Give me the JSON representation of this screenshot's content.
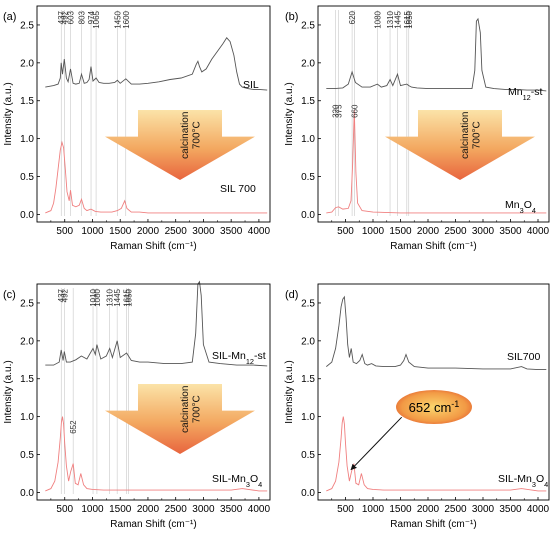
{
  "chart_data": [
    {
      "panel": "(a)",
      "type": "line",
      "xlabel": "Raman Shift (cm⁻¹)",
      "ylabel": "Intensity (a.u.)",
      "xlim": [
        0,
        4200
      ],
      "ylim": [
        -0.1,
        2.75
      ],
      "xticks": [
        500,
        1000,
        1500,
        2000,
        2500,
        3000,
        3500,
        4000
      ],
      "yticks": [
        0.0,
        0.5,
        1.0,
        1.5,
        2.0,
        2.5
      ],
      "peak_lines": [
        437,
        492,
        603,
        803,
        974,
        1065,
        1450,
        1600
      ],
      "peak_labels": [
        "437",
        "492",
        "603",
        "803",
        "974",
        "1065",
        "1450",
        "1600"
      ],
      "arrow_text": "calcination\n700°C",
      "series": [
        {
          "name": "SIL",
          "color": "#555555",
          "x": [
            150,
            300,
            380,
            420,
            437,
            460,
            492,
            530,
            560,
            603,
            650,
            700,
            760,
            803,
            850,
            900,
            940,
            974,
            1010,
            1065,
            1120,
            1200,
            1300,
            1400,
            1450,
            1500,
            1600,
            1700,
            1850,
            2000,
            2200,
            2400,
            2600,
            2800,
            2870,
            2900,
            2930,
            2970,
            3050,
            3150,
            3250,
            3350,
            3420,
            3480,
            3550,
            3600,
            3650,
            3700,
            3800,
            3900,
            4000,
            4150
          ],
          "y": [
            1.68,
            1.7,
            1.72,
            1.8,
            2.0,
            1.85,
            2.05,
            1.8,
            1.75,
            1.92,
            1.73,
            1.72,
            1.73,
            1.85,
            1.73,
            1.74,
            1.78,
            1.95,
            1.76,
            1.8,
            1.74,
            1.73,
            1.73,
            1.74,
            1.77,
            1.73,
            1.79,
            1.72,
            1.72,
            1.73,
            1.75,
            1.78,
            1.8,
            1.85,
            1.98,
            2.02,
            1.95,
            1.88,
            1.92,
            2.05,
            2.15,
            2.25,
            2.33,
            2.28,
            2.1,
            1.88,
            1.72,
            1.68,
            1.66,
            1.65,
            1.65,
            1.64
          ]
        },
        {
          "name": "SIL 700",
          "color": "#f08080",
          "x": [
            150,
            250,
            300,
            340,
            380,
            420,
            450,
            480,
            510,
            540,
            580,
            603,
            640,
            700,
            760,
            803,
            850,
            900,
            974,
            1050,
            1150,
            1250,
            1350,
            1450,
            1520,
            1580,
            1620,
            1700,
            1850,
            2000,
            2500,
            3000,
            3500,
            4000,
            4150
          ],
          "y": [
            0.02,
            0.05,
            0.15,
            0.35,
            0.6,
            0.85,
            0.95,
            0.88,
            0.6,
            0.3,
            0.18,
            0.32,
            0.12,
            0.1,
            0.12,
            0.2,
            0.08,
            0.05,
            0.07,
            0.04,
            0.03,
            0.03,
            0.03,
            0.05,
            0.08,
            0.18,
            0.08,
            0.03,
            0.03,
            0.02,
            0.02,
            0.02,
            0.02,
            0.02,
            0.02
          ]
        }
      ],
      "series_labels": [
        "SIL",
        "SIL 700"
      ]
    },
    {
      "panel": "(b)",
      "type": "line",
      "xlabel": "Raman Shift (cm⁻¹)",
      "ylabel": "Intensity (a.u.)",
      "xlim": [
        0,
        4200
      ],
      "ylim": [
        -0.1,
        2.75
      ],
      "xticks": [
        500,
        1000,
        1500,
        2000,
        2500,
        3000,
        3500,
        4000
      ],
      "yticks": [
        0.0,
        0.5,
        1.0,
        1.5,
        2.0,
        2.5
      ],
      "peak_lines": [
        320,
        375,
        620,
        660,
        1080,
        1310,
        1445,
        1615,
        1650
      ],
      "peak_labels": [
        "320",
        "375",
        "620",
        "660",
        "1080",
        "1310",
        "1445",
        "1615",
        "1650"
      ],
      "arrow_text": "calcination\n700°C",
      "series": [
        {
          "name": "Mn₁₂-st",
          "color": "#555555",
          "x": [
            150,
            300,
            450,
            550,
            620,
            680,
            800,
            950,
            1080,
            1150,
            1250,
            1310,
            1360,
            1445,
            1500,
            1615,
            1650,
            1700,
            1800,
            2000,
            2300,
            2600,
            2800,
            2850,
            2880,
            2910,
            2950,
            2980,
            3050,
            3200,
            3400,
            3600,
            3800,
            4000,
            4150
          ],
          "y": [
            1.66,
            1.66,
            1.67,
            1.72,
            1.88,
            1.74,
            1.68,
            1.68,
            1.72,
            1.68,
            1.7,
            1.78,
            1.7,
            1.85,
            1.7,
            1.72,
            1.7,
            1.68,
            1.67,
            1.66,
            1.66,
            1.66,
            1.66,
            1.9,
            2.55,
            2.58,
            2.4,
            1.9,
            1.68,
            1.66,
            1.65,
            1.65,
            1.64,
            1.64,
            1.63
          ]
        },
        {
          "name": "Mn₃O₄",
          "color": "#f08080",
          "x": [
            150,
            250,
            320,
            375,
            450,
            550,
            600,
            630,
            660,
            690,
            720,
            800,
            1000,
            1500,
            2000,
            2500,
            3000,
            3500,
            4000,
            4150
          ],
          "y": [
            0.02,
            0.03,
            0.09,
            0.1,
            0.07,
            0.08,
            0.18,
            0.65,
            1.38,
            0.55,
            0.15,
            0.05,
            0.03,
            0.02,
            0.02,
            0.02,
            0.02,
            0.02,
            0.02,
            0.02
          ]
        }
      ],
      "series_labels": [
        "Mn₁₂-st",
        "Mn₃O₄"
      ]
    },
    {
      "panel": "(c)",
      "type": "line",
      "xlabel": "Raman Shift (cm⁻¹)",
      "ylabel": "Intensity (a.u.)",
      "xlim": [
        0,
        4200
      ],
      "ylim": [
        -0.1,
        2.75
      ],
      "xticks": [
        500,
        1000,
        1500,
        2000,
        2500,
        3000,
        3500,
        4000
      ],
      "yticks": [
        0.0,
        0.5,
        1.0,
        1.5,
        2.0,
        2.5
      ],
      "peak_lines": [
        437,
        492,
        652,
        1010,
        1080,
        1310,
        1445,
        1615,
        1650
      ],
      "peak_labels": [
        "437",
        "492",
        "652",
        "1010",
        "1080",
        "1310",
        "1445",
        "1615",
        "1650"
      ],
      "arrow_text": "calcination\n700°C",
      "series": [
        {
          "name": "SIL-Mn₁₂-st",
          "color": "#555555",
          "x": [
            150,
            300,
            400,
            437,
            470,
            492,
            530,
            600,
            700,
            800,
            900,
            1010,
            1050,
            1080,
            1150,
            1250,
            1310,
            1360,
            1445,
            1500,
            1615,
            1650,
            1700,
            1850,
            2000,
            2300,
            2600,
            2800,
            2860,
            2900,
            2930,
            2960,
            3000,
            3100,
            3300,
            3600,
            3900,
            4150
          ],
          "y": [
            1.68,
            1.68,
            1.72,
            1.88,
            1.74,
            1.86,
            1.72,
            1.72,
            1.75,
            1.8,
            1.76,
            1.9,
            1.82,
            1.95,
            1.76,
            1.8,
            1.9,
            1.78,
            2.0,
            1.78,
            1.84,
            1.8,
            1.74,
            1.72,
            1.72,
            1.7,
            1.7,
            1.72,
            2.1,
            2.75,
            2.78,
            2.6,
            1.95,
            1.72,
            1.7,
            1.68,
            1.68,
            1.67
          ]
        },
        {
          "name": "SIL-Mn₃O₄",
          "color": "#f08080",
          "x": [
            150,
            250,
            320,
            380,
            420,
            440,
            460,
            480,
            500,
            530,
            570,
            610,
            652,
            690,
            740,
            790,
            840,
            900,
            1000,
            1200,
            1500,
            2000,
            2500,
            3000,
            3500,
            3700,
            4000,
            4150
          ],
          "y": [
            0.02,
            0.05,
            0.15,
            0.4,
            0.72,
            0.92,
            1.0,
            0.9,
            0.65,
            0.35,
            0.15,
            0.28,
            0.38,
            0.12,
            0.1,
            0.25,
            0.1,
            0.05,
            0.04,
            0.03,
            0.03,
            0.03,
            0.03,
            0.03,
            0.03,
            0.05,
            0.02,
            0.02
          ]
        }
      ],
      "series_labels": [
        "SIL-Mn₁₂-st",
        "SIL-Mn₃O₄"
      ]
    },
    {
      "panel": "(d)",
      "type": "line",
      "xlabel": "Raman Shift (cm⁻¹)",
      "ylabel": "Intensity (a.u.)",
      "xlim": [
        0,
        4200
      ],
      "ylim": [
        -0.1,
        2.75
      ],
      "xticks": [
        500,
        1000,
        1500,
        2000,
        2500,
        3000,
        3500,
        4000
      ],
      "yticks": [
        0.0,
        0.5,
        1.0,
        1.5,
        2.0,
        2.5
      ],
      "callout_text": "652 cm⁻¹",
      "callout_target": [
        600,
        0.3
      ],
      "series": [
        {
          "name": "SIL700",
          "color": "#555555",
          "x": [
            150,
            250,
            320,
            380,
            420,
            450,
            480,
            510,
            540,
            570,
            603,
            640,
            700,
            760,
            803,
            850,
            900,
            974,
            1050,
            1200,
            1400,
            1500,
            1560,
            1600,
            1650,
            1750,
            2000,
            2500,
            3000,
            3500,
            3700,
            3800,
            4000,
            4150
          ],
          "y": [
            1.66,
            1.72,
            1.9,
            2.2,
            2.45,
            2.55,
            2.58,
            2.3,
            1.95,
            1.78,
            1.9,
            1.72,
            1.7,
            1.74,
            1.82,
            1.7,
            1.68,
            1.7,
            1.67,
            1.66,
            1.66,
            1.68,
            1.74,
            1.82,
            1.72,
            1.66,
            1.64,
            1.64,
            1.63,
            1.63,
            1.66,
            1.63,
            1.62,
            1.62
          ]
        },
        {
          "name": "SIL-Mn₃O₄",
          "color": "#f08080",
          "x": [
            150,
            250,
            320,
            380,
            420,
            440,
            460,
            480,
            500,
            530,
            570,
            610,
            652,
            690,
            740,
            790,
            840,
            900,
            1000,
            1200,
            1500,
            2000,
            2500,
            3000,
            3500,
            3700,
            4000,
            4150
          ],
          "y": [
            0.02,
            0.05,
            0.15,
            0.4,
            0.72,
            0.92,
            1.0,
            0.9,
            0.65,
            0.35,
            0.15,
            0.28,
            0.38,
            0.12,
            0.1,
            0.25,
            0.1,
            0.05,
            0.04,
            0.03,
            0.03,
            0.03,
            0.03,
            0.03,
            0.03,
            0.05,
            0.02,
            0.02
          ]
        }
      ],
      "series_labels": [
        "SIL700",
        "SIL-Mn₃O₄"
      ]
    }
  ]
}
